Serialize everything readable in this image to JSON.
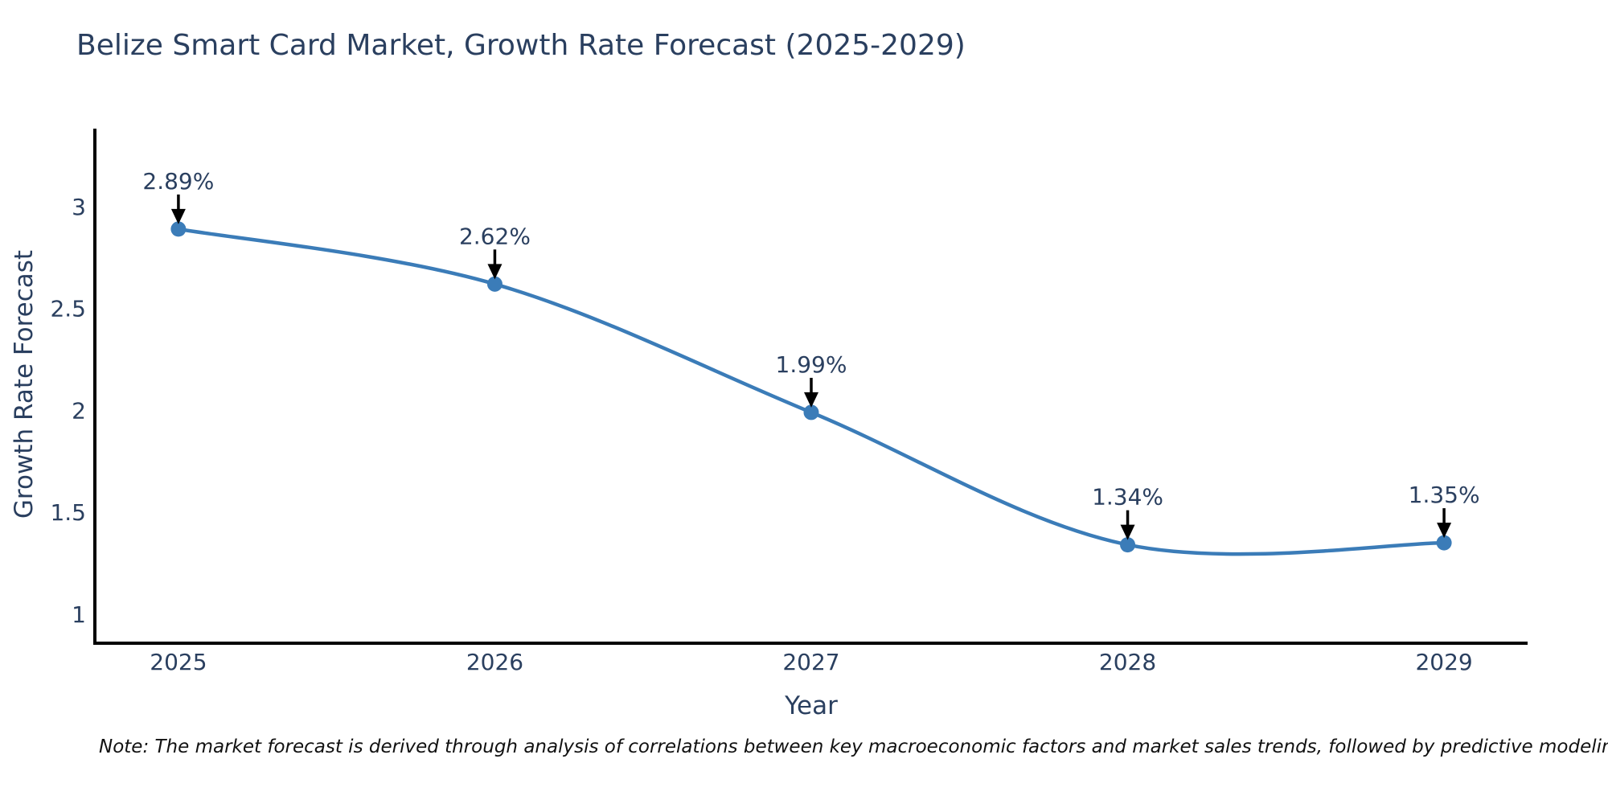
{
  "page": {
    "background": "#ffffff"
  },
  "chart_data": {
    "type": "line",
    "title": "Belize Smart Card Market, Growth Rate Forecast (2025-2029)",
    "xlabel": "Year",
    "ylabel": "Growth Rate Forecast",
    "x": [
      2025,
      2026,
      2027,
      2028,
      2029
    ],
    "xticks": [
      "2025",
      "2026",
      "2027",
      "2028",
      "2029"
    ],
    "series": [
      {
        "name": "Growth Rate Forecast",
        "values": [
          2.89,
          2.62,
          1.99,
          1.34,
          1.35
        ]
      }
    ],
    "point_labels": [
      "2.89%",
      "2.62%",
      "1.99%",
      "1.34%",
      "1.35%"
    ],
    "yticks": [
      1,
      1.5,
      2,
      2.5,
      3
    ],
    "ytick_labels": [
      "1",
      "1.5",
      "2",
      "2.5",
      "3"
    ],
    "xlim": [
      2024.736,
      2029.264
    ],
    "ylim": [
      0.857,
      3.383
    ],
    "line_shape": "spline",
    "grid": false,
    "legend_position": "none",
    "annotation_style": "arrow-down-to-point",
    "colors": {
      "line": "#3b7cb8",
      "marker": "#3b7cb8",
      "text": "#2a3f5f",
      "axis": "#000000",
      "arrow": "#000000",
      "note_text": "#111111"
    },
    "note": "Note: The market forecast is derived through analysis of correlations between key macroeconomic factors and market sales trends, followed by predictive modeling to project future sales"
  }
}
